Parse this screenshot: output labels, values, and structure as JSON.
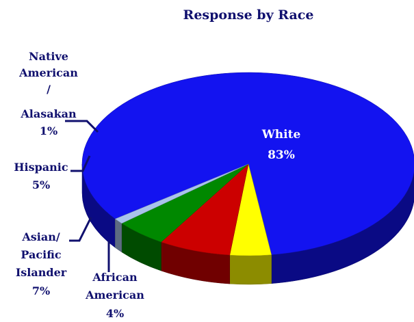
{
  "chart_data": {
    "type": "pie",
    "title": "Response by Race",
    "grid": false,
    "legend": "none",
    "categories": [
      "White",
      "African American",
      "Asian/ Pacific Islander",
      "Hispanic",
      "Native American / Alasakan"
    ],
    "values": [
      83,
      4,
      7,
      5,
      1
    ],
    "data_labels": [
      "83%",
      "4%",
      "7%",
      "5%",
      "1%"
    ],
    "colors": [
      "#1313f0",
      "#ffff00",
      "#cc0000",
      "#008800",
      "#a9c3ec"
    ],
    "label_lines": {
      "white": [
        "White",
        "83%"
      ],
      "african_american": [
        "African",
        "American",
        "4%"
      ],
      "asian_pacific_islander": [
        "Asian/",
        "Pacific",
        "Islander",
        "7%"
      ],
      "hispanic": [
        "Hispanic",
        "5%"
      ],
      "native_american_alasakan": [
        "Native",
        "American",
        "/",
        "Alasakan",
        "1%"
      ]
    }
  }
}
